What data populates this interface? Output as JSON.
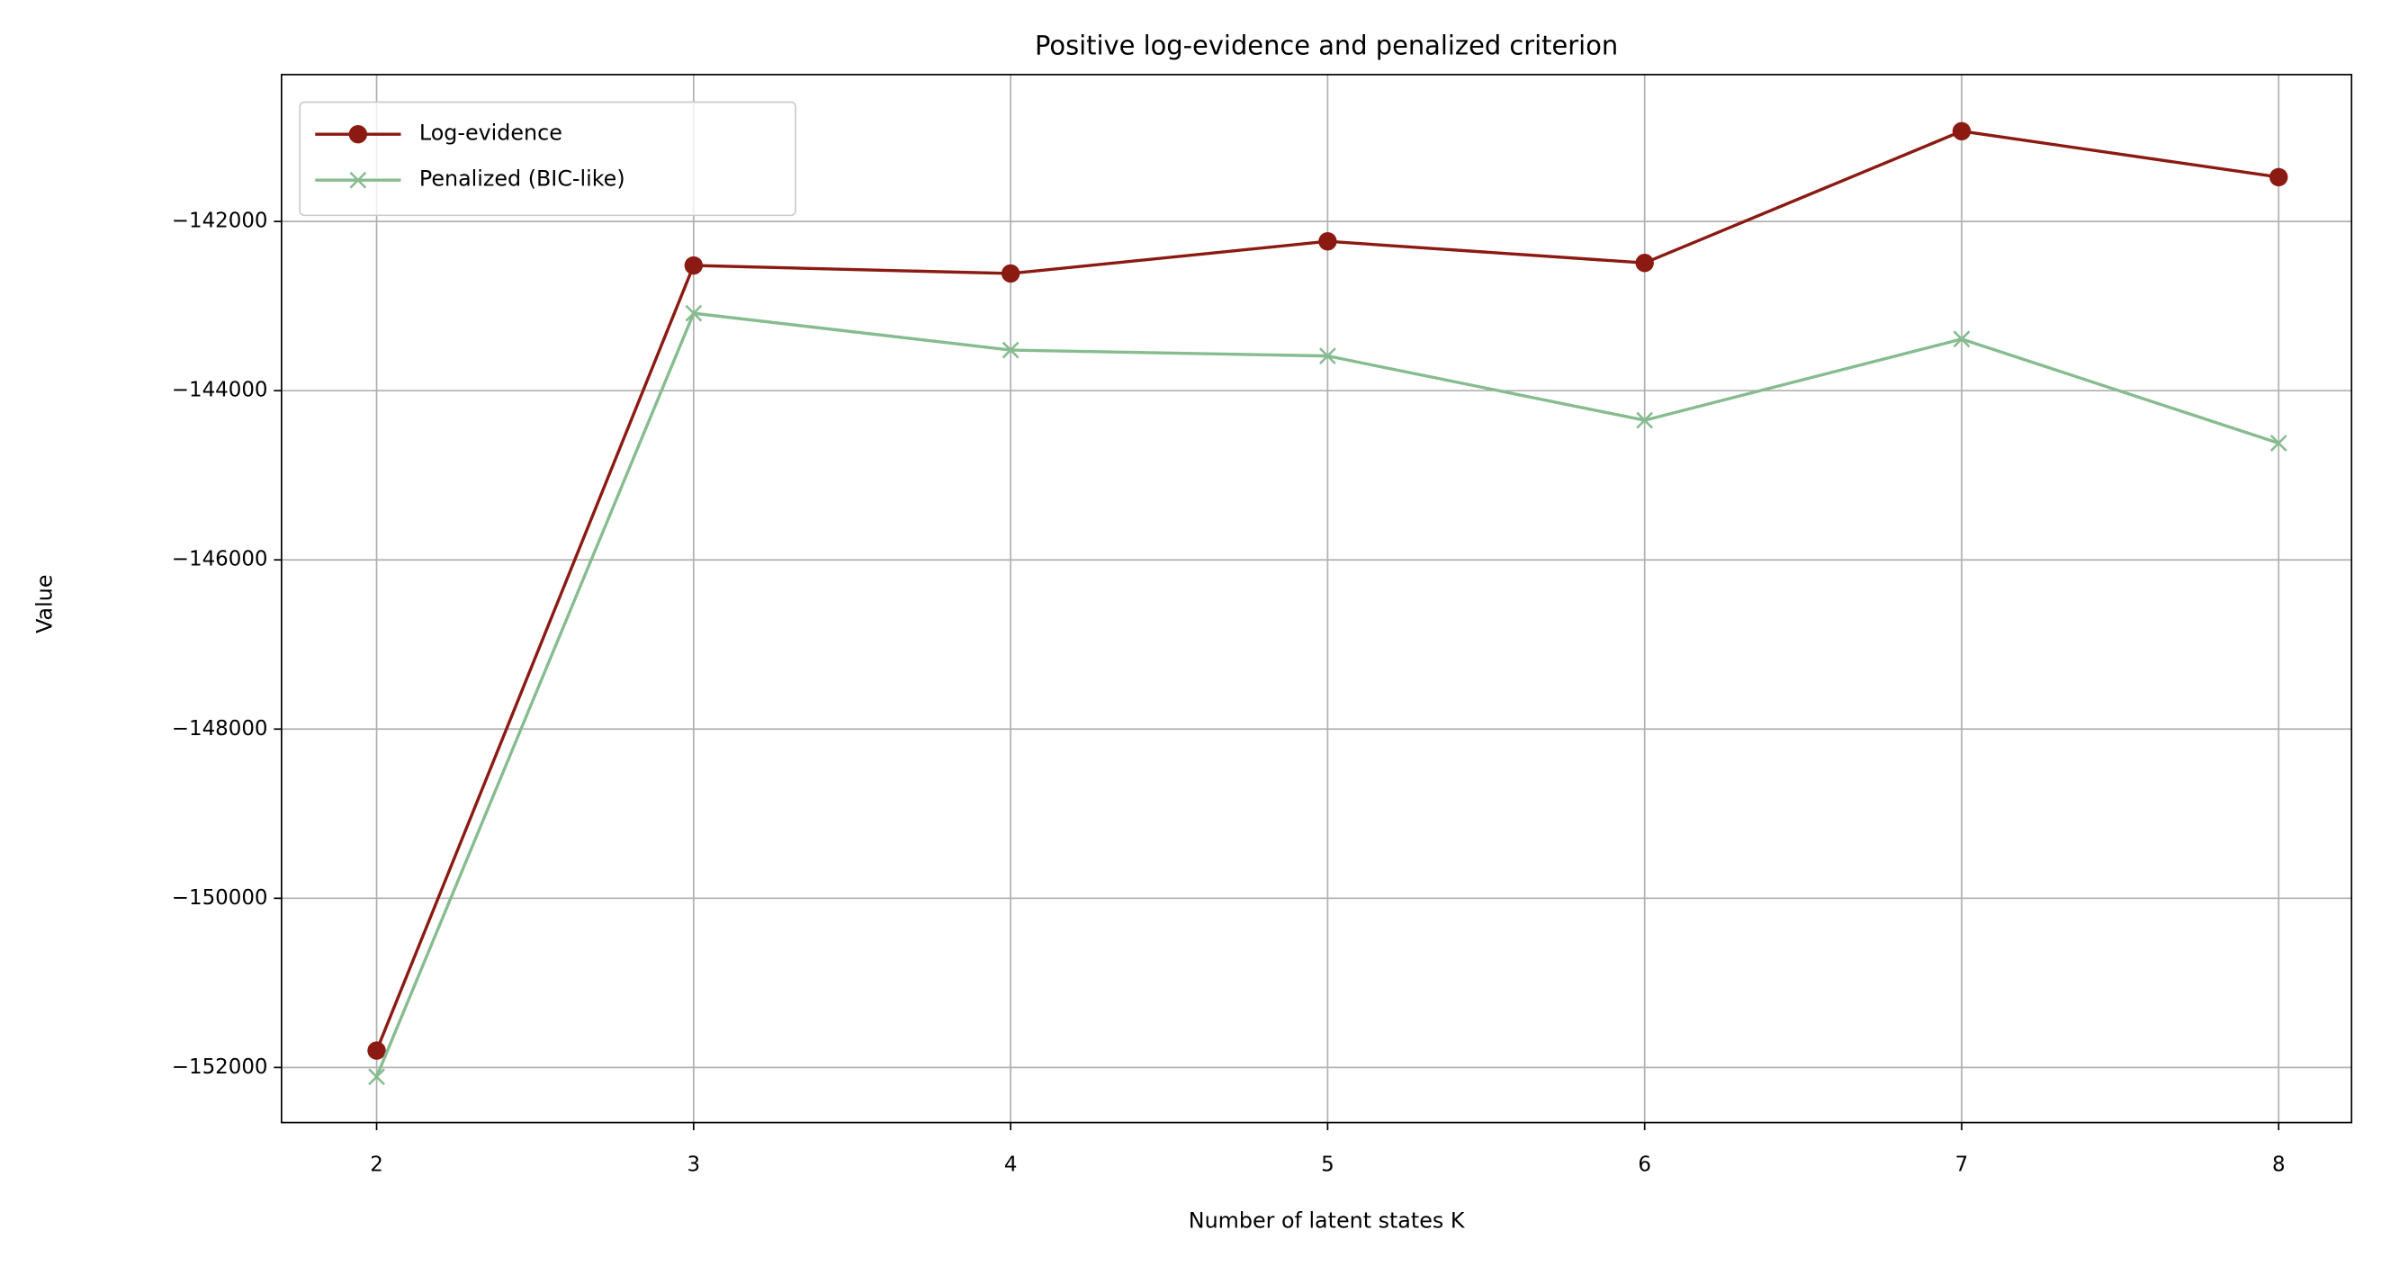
{
  "chart_data": {
    "type": "line",
    "title": "Positive log-evidence and penalized criterion",
    "x_label": "Number of latent states K",
    "y_label": "Value",
    "x": [
      2,
      3,
      4,
      5,
      6,
      7,
      8
    ],
    "series": [
      {
        "name": "Log-evidence",
        "color": "#8b1a12",
        "marker": "o",
        "values": [
          -151800,
          -142520,
          -142615,
          -142235,
          -142490,
          -140933,
          -141476
        ]
      },
      {
        "name": "Penalized (BIC-like)",
        "color": "#86bc8f",
        "marker": "x",
        "values": [
          -152110,
          -143085,
          -143520,
          -143590,
          -144350,
          -143390,
          -144620
        ]
      }
    ],
    "xlim": [
      1.7,
      8.23
    ],
    "ylim": [
      -152651,
      -140264
    ],
    "xticks": [
      2,
      3,
      4,
      5,
      6,
      7,
      8
    ],
    "yticks": [
      {
        "value": -152000,
        "label": "−152000"
      },
      {
        "value": -150000,
        "label": "−150000"
      },
      {
        "value": -148000,
        "label": "−148000"
      },
      {
        "value": -146000,
        "label": "−146000"
      },
      {
        "value": -144000,
        "label": "−144000"
      },
      {
        "value": -142000,
        "label": "−142000"
      }
    ],
    "grid": true,
    "legend": "upper left"
  }
}
